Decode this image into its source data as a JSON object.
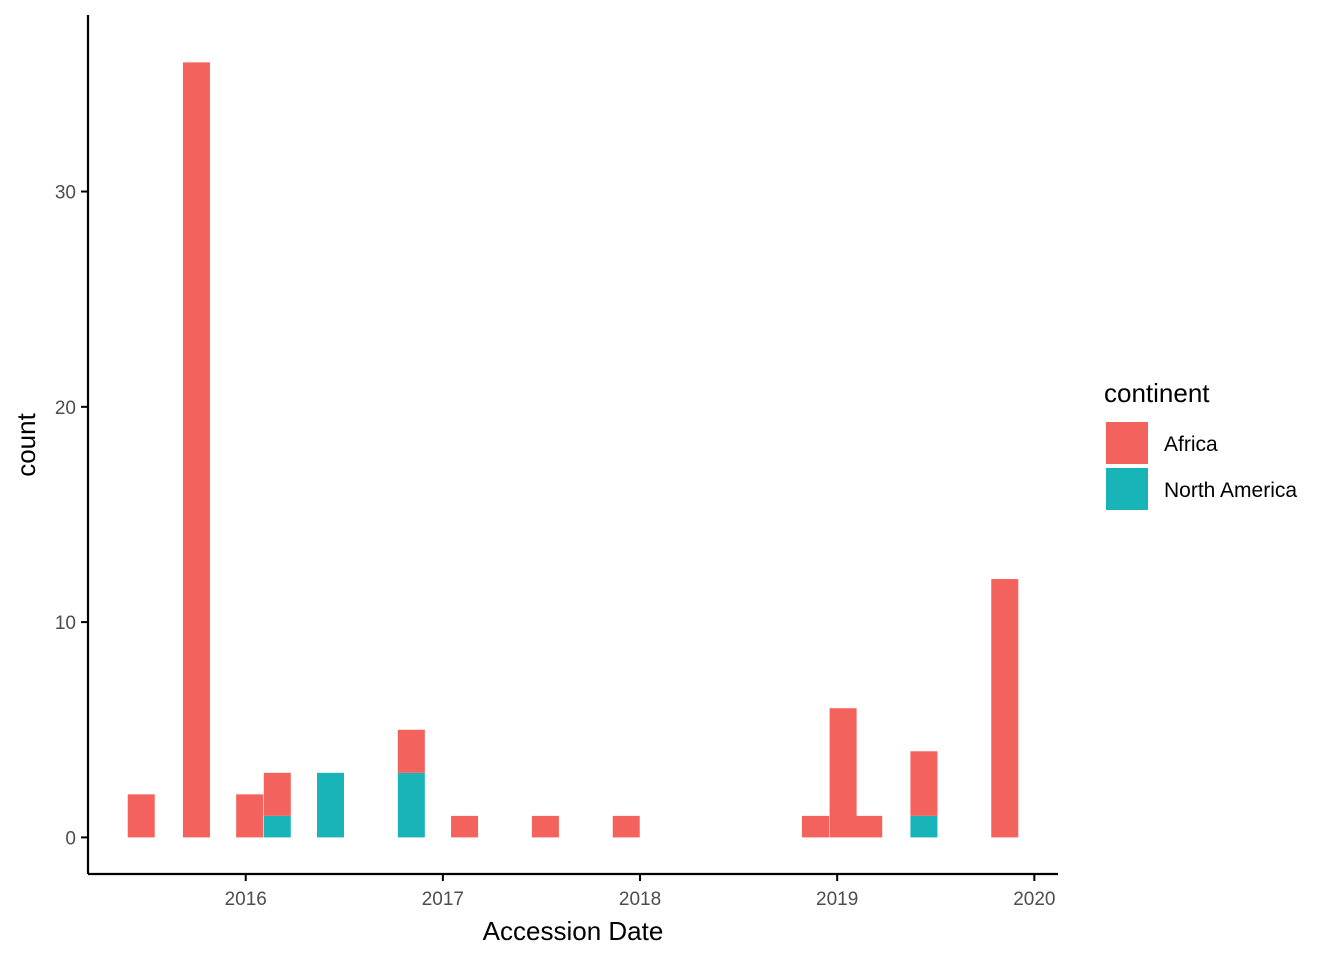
{
  "chart_data": {
    "type": "bar",
    "stacked": true,
    "title": "",
    "xlabel": "Accession Date",
    "ylabel": "count",
    "ylim": [
      -1.7,
      38.2
    ],
    "xlim": [
      2015.2,
      2020.12
    ],
    "x_ticks": [
      2016,
      2017,
      2018,
      2019,
      2020
    ],
    "x_tick_labels": [
      "2016",
      "2017",
      "2018",
      "2019",
      "2020"
    ],
    "y_ticks": [
      0,
      10,
      20,
      30
    ],
    "y_tick_labels": [
      "0",
      "10",
      "20",
      "30"
    ],
    "bin_width": 0.137,
    "bin_centers": [
      2015.47,
      2015.75,
      2016.02,
      2016.16,
      2016.43,
      2016.84,
      2017.11,
      2017.52,
      2017.93,
      2018.89,
      2019.03,
      2019.16,
      2019.44,
      2019.85
    ],
    "series": [
      {
        "name": "North America",
        "color": "#19B4B8",
        "values": [
          0,
          0,
          0,
          1,
          3,
          3,
          0,
          0,
          0,
          0,
          0,
          0,
          1,
          0
        ]
      },
      {
        "name": "Africa",
        "color": "#F3625C",
        "values": [
          2,
          36,
          2,
          2,
          0,
          2,
          1,
          1,
          1,
          1,
          6,
          1,
          3,
          12
        ]
      }
    ],
    "legend": {
      "title": "continent",
      "position": "right",
      "entries": [
        {
          "label": "Africa",
          "color": "#F3625C"
        },
        {
          "label": "North America",
          "color": "#19B4B8"
        }
      ]
    },
    "grid": false
  }
}
